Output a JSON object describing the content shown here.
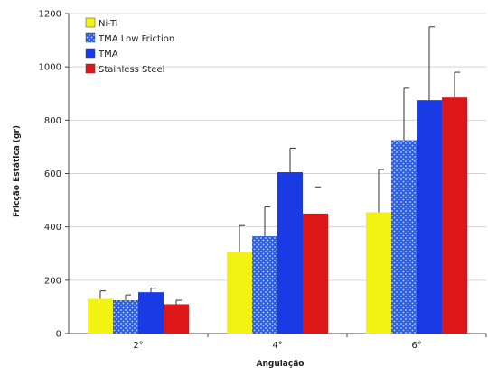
{
  "chart_data": {
    "type": "bar",
    "categories": [
      "2°",
      "4°",
      "6°"
    ],
    "xlabel": "Angulação",
    "ylabel": "Fricção Estática (gr)",
    "ylim": [
      0,
      1200
    ],
    "yticks": [
      0,
      200,
      400,
      600,
      800,
      1000,
      1200
    ],
    "grid": true,
    "legend_position": "top-left",
    "series": [
      {
        "name": "Ni-Ti",
        "color": "#f2f213",
        "pattern": "solid",
        "values": [
          130,
          305,
          455
        ],
        "errors": [
          30,
          100,
          160
        ]
      },
      {
        "name": "TMA Low Friction",
        "color": "#2d5fe0",
        "pattern": "dots",
        "values": [
          125,
          365,
          725
        ],
        "errors": [
          20,
          110,
          195
        ]
      },
      {
        "name": "TMA",
        "color": "#1a3ae6",
        "pattern": "solid",
        "values": [
          155,
          605,
          875
        ],
        "errors": [
          15,
          90,
          275
        ]
      },
      {
        "name": "Stainless Steel",
        "color": "#dd1717",
        "pattern": "solid",
        "values": [
          110,
          450,
          885
        ],
        "errors": [
          15,
          0,
          95
        ]
      }
    ]
  }
}
